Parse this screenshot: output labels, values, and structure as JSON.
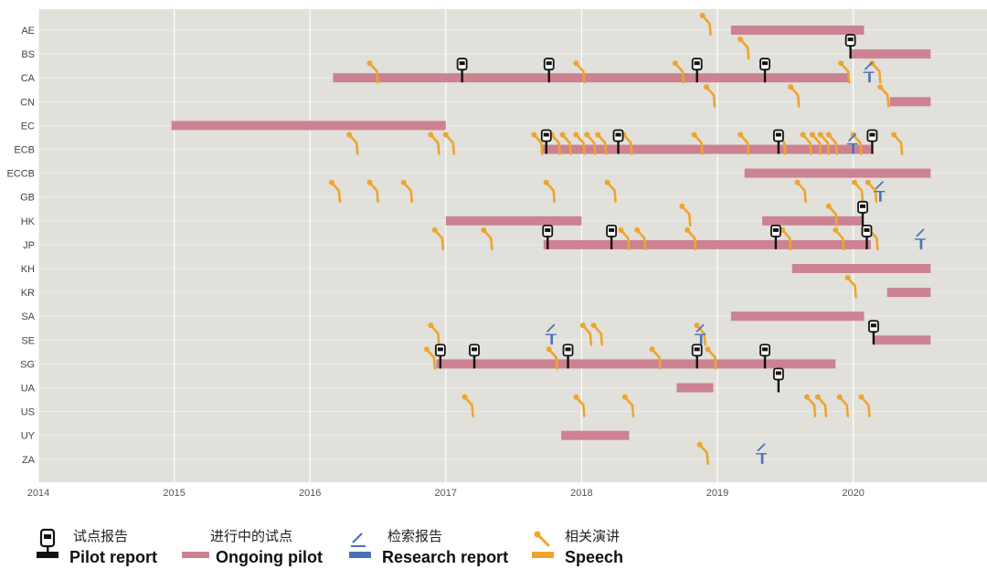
{
  "chart_data": {
    "type": "timeline",
    "title": "",
    "xlabel": "",
    "ylabel": "",
    "xlim": [
      2014,
      2021
    ],
    "x_ticks": [
      "2014",
      "2015",
      "2016",
      "2017",
      "2018",
      "2019",
      "2020"
    ],
    "x_tick_values": [
      2014,
      2015,
      2016,
      2017,
      2018,
      2019,
      2020
    ],
    "rows": [
      "AE",
      "BS",
      "CA",
      "CN",
      "EC",
      "ECB",
      "ECCB",
      "GB",
      "HK",
      "JP",
      "KH",
      "KR",
      "SA",
      "SE",
      "SG",
      "UA",
      "US",
      "UY",
      "ZA"
    ],
    "colors": {
      "background": "#e1e0da",
      "grid": "#ffffff",
      "pilot_bar": "#cc8290",
      "pilot_report": "#111111",
      "research_report": "#4a72b8",
      "speech": "#eda52e"
    },
    "ongoing_pilots": [
      {
        "row": "AE",
        "start": 2019.1,
        "end": 2020.08
      },
      {
        "row": "BS",
        "start": 2019.98,
        "end": 2020.57
      },
      {
        "row": "CA",
        "start": 2016.17,
        "end": 2019.97
      },
      {
        "row": "CN",
        "start": 2020.27,
        "end": 2020.57
      },
      {
        "row": "EC",
        "start": 2014.98,
        "end": 2017.0
      },
      {
        "row": "ECB",
        "start": 2017.7,
        "end": 2020.13
      },
      {
        "row": "ECCB",
        "start": 2019.2,
        "end": 2020.57
      },
      {
        "row": "HK",
        "start": 2017.0,
        "end": 2018.0
      },
      {
        "row": "HK",
        "start": 2019.33,
        "end": 2020.07
      },
      {
        "row": "JP",
        "start": 2017.72,
        "end": 2020.13
      },
      {
        "row": "KH",
        "start": 2019.55,
        "end": 2020.57
      },
      {
        "row": "KR",
        "start": 2020.25,
        "end": 2020.57
      },
      {
        "row": "SA",
        "start": 2019.1,
        "end": 2020.08
      },
      {
        "row": "SE",
        "start": 2020.15,
        "end": 2020.57
      },
      {
        "row": "SG",
        "start": 2016.93,
        "end": 2019.87
      },
      {
        "row": "UA",
        "start": 2018.7,
        "end": 2018.97
      },
      {
        "row": "UY",
        "start": 2017.85,
        "end": 2018.35
      }
    ],
    "pilot_reports": [
      {
        "row": "BS",
        "x": 2019.98
      },
      {
        "row": "CA",
        "x": 2017.12
      },
      {
        "row": "CA",
        "x": 2017.76
      },
      {
        "row": "CA",
        "x": 2018.85
      },
      {
        "row": "CA",
        "x": 2019.35
      },
      {
        "row": "ECB",
        "x": 2017.74
      },
      {
        "row": "ECB",
        "x": 2018.27
      },
      {
        "row": "ECB",
        "x": 2019.45
      },
      {
        "row": "ECB",
        "x": 2020.14
      },
      {
        "row": "HK",
        "x": 2020.07
      },
      {
        "row": "JP",
        "x": 2017.75
      },
      {
        "row": "JP",
        "x": 2018.22
      },
      {
        "row": "JP",
        "x": 2019.43
      },
      {
        "row": "JP",
        "x": 2020.1
      },
      {
        "row": "SE",
        "x": 2020.15
      },
      {
        "row": "SG",
        "x": 2016.96
      },
      {
        "row": "SG",
        "x": 2017.21
      },
      {
        "row": "SG",
        "x": 2017.9
      },
      {
        "row": "SG",
        "x": 2018.85
      },
      {
        "row": "SG",
        "x": 2019.35
      },
      {
        "row": "UA",
        "x": 2019.45
      }
    ],
    "research_reports": [
      {
        "row": "CA",
        "x": 2020.12
      },
      {
        "row": "ECB",
        "x": 2020.0
      },
      {
        "row": "GB",
        "x": 2020.2
      },
      {
        "row": "JP",
        "x": 2020.5
      },
      {
        "row": "SE",
        "x": 2017.78
      },
      {
        "row": "SE",
        "x": 2018.88
      },
      {
        "row": "ZA",
        "x": 2019.33
      }
    ],
    "speeches": [
      {
        "row": "AE",
        "x": 2018.95
      },
      {
        "row": "BS",
        "x": 2019.23
      },
      {
        "row": "CA",
        "x": 2016.5
      },
      {
        "row": "CA",
        "x": 2018.02
      },
      {
        "row": "CA",
        "x": 2018.75
      },
      {
        "row": "CA",
        "x": 2019.97
      },
      {
        "row": "CA",
        "x": 2020.2
      },
      {
        "row": "CN",
        "x": 2018.98
      },
      {
        "row": "CN",
        "x": 2019.6
      },
      {
        "row": "CN",
        "x": 2020.26
      },
      {
        "row": "ECB",
        "x": 2016.35
      },
      {
        "row": "ECB",
        "x": 2016.95
      },
      {
        "row": "ECB",
        "x": 2017.06
      },
      {
        "row": "ECB",
        "x": 2017.71
      },
      {
        "row": "ECB",
        "x": 2017.84
      },
      {
        "row": "ECB",
        "x": 2017.92
      },
      {
        "row": "ECB",
        "x": 2018.02
      },
      {
        "row": "ECB",
        "x": 2018.1
      },
      {
        "row": "ECB",
        "x": 2018.18
      },
      {
        "row": "ECB",
        "x": 2018.37
      },
      {
        "row": "ECB",
        "x": 2018.89
      },
      {
        "row": "ECB",
        "x": 2019.23
      },
      {
        "row": "ECB",
        "x": 2019.5
      },
      {
        "row": "ECB",
        "x": 2019.69
      },
      {
        "row": "ECB",
        "x": 2019.76
      },
      {
        "row": "ECB",
        "x": 2019.82
      },
      {
        "row": "ECB",
        "x": 2019.88
      },
      {
        "row": "ECB",
        "x": 2020.06
      },
      {
        "row": "ECB",
        "x": 2020.36
      },
      {
        "row": "GB",
        "x": 2016.22
      },
      {
        "row": "GB",
        "x": 2016.5
      },
      {
        "row": "GB",
        "x": 2016.75
      },
      {
        "row": "GB",
        "x": 2017.8
      },
      {
        "row": "GB",
        "x": 2018.25
      },
      {
        "row": "GB",
        "x": 2019.65
      },
      {
        "row": "GB",
        "x": 2020.07
      },
      {
        "row": "GB",
        "x": 2020.17
      },
      {
        "row": "HK",
        "x": 2018.8
      },
      {
        "row": "HK",
        "x": 2019.88
      },
      {
        "row": "JP",
        "x": 2016.98
      },
      {
        "row": "JP",
        "x": 2017.34
      },
      {
        "row": "JP",
        "x": 2018.35
      },
      {
        "row": "JP",
        "x": 2018.47
      },
      {
        "row": "JP",
        "x": 2018.84
      },
      {
        "row": "JP",
        "x": 2019.54
      },
      {
        "row": "JP",
        "x": 2019.93
      },
      {
        "row": "JP",
        "x": 2020.18
      },
      {
        "row": "KR",
        "x": 2020.02
      },
      {
        "row": "SE",
        "x": 2016.95
      },
      {
        "row": "SE",
        "x": 2018.07
      },
      {
        "row": "SE",
        "x": 2018.15
      },
      {
        "row": "SE",
        "x": 2018.91
      },
      {
        "row": "SG",
        "x": 2016.92
      },
      {
        "row": "SG",
        "x": 2017.82
      },
      {
        "row": "SG",
        "x": 2018.58
      },
      {
        "row": "SG",
        "x": 2018.99
      },
      {
        "row": "US",
        "x": 2017.2
      },
      {
        "row": "US",
        "x": 2018.02
      },
      {
        "row": "US",
        "x": 2018.38
      },
      {
        "row": "US",
        "x": 2019.72
      },
      {
        "row": "US",
        "x": 2019.8
      },
      {
        "row": "US",
        "x": 2019.96
      },
      {
        "row": "US",
        "x": 2020.12
      },
      {
        "row": "ZA",
        "x": 2018.93
      }
    ]
  },
  "legend": {
    "pilot_report": {
      "cn": "试点报告",
      "en": "Pilot report"
    },
    "ongoing_pilot": {
      "cn": "进行中的试点",
      "en": "Ongoing pilot"
    },
    "research_report": {
      "cn": "检索报告",
      "en": "Research report"
    },
    "speech": {
      "cn": "相关演讲",
      "en": "Speech"
    }
  }
}
